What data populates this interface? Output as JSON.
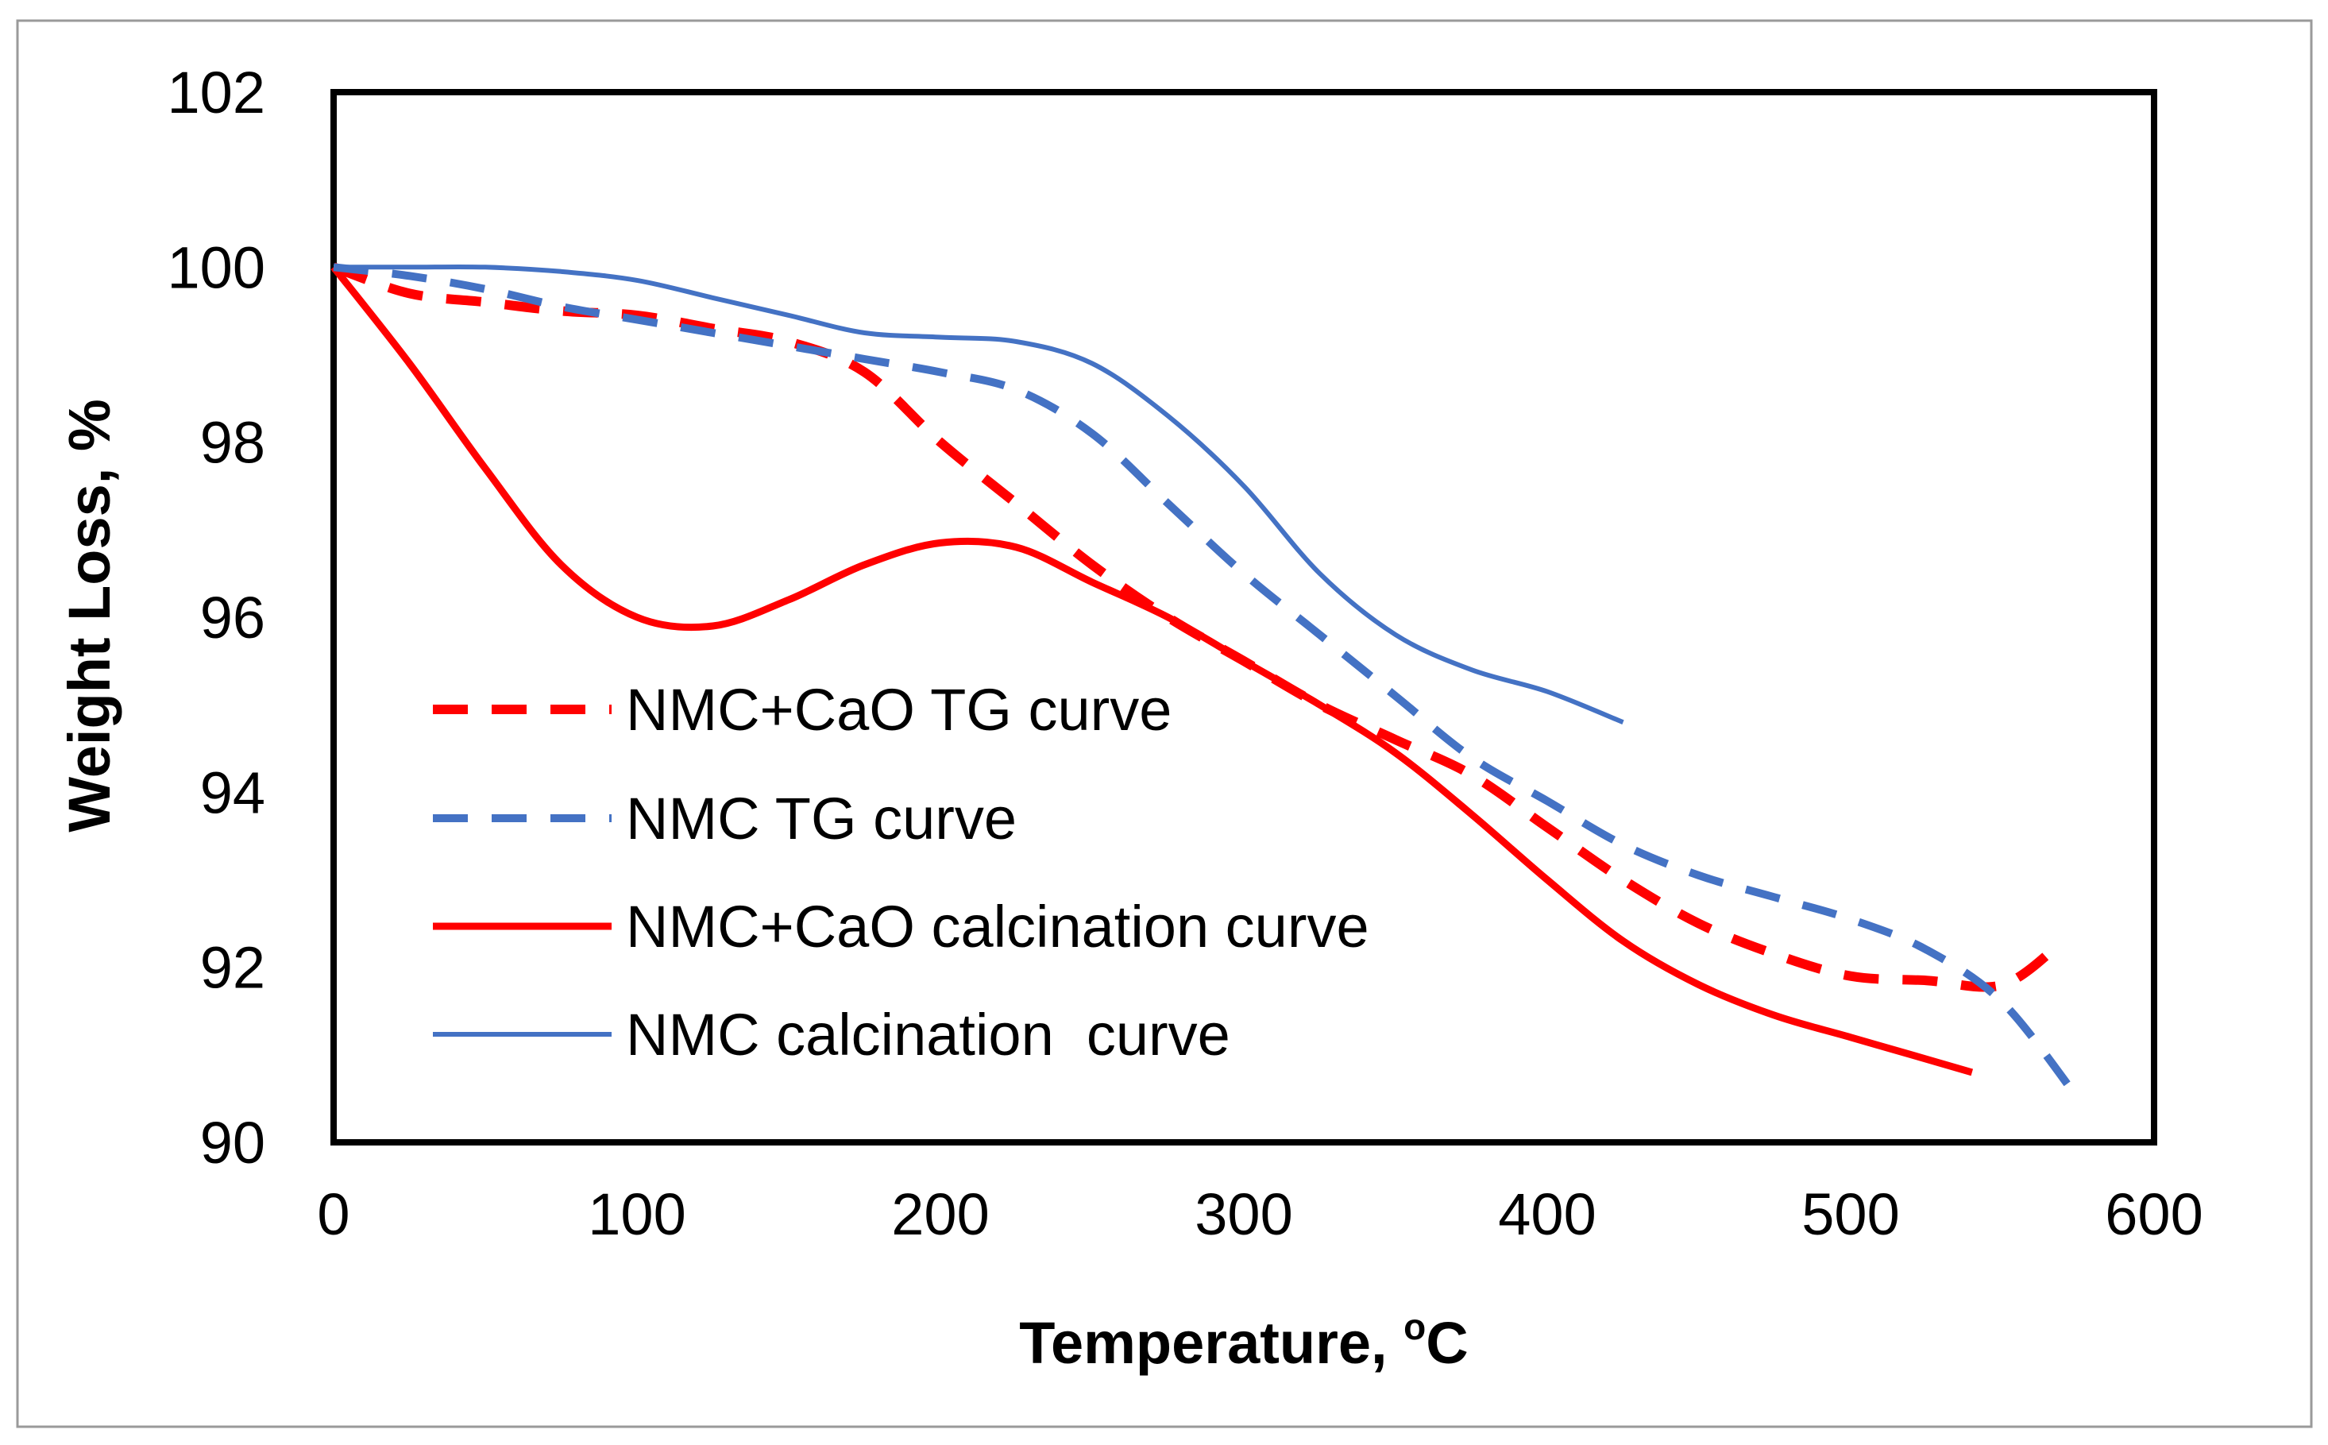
{
  "chart_data": {
    "type": "line",
    "title": "",
    "xlabel": "Temperature, ",
    "xlabel_sup": "o",
    "xlabel_unit": "C",
    "ylabel": "Weight Loss, %",
    "xlim": [
      0,
      600
    ],
    "ylim": [
      90,
      102
    ],
    "xticks": [
      "0",
      "100",
      "200",
      "300",
      "400",
      "500",
      "600"
    ],
    "yticks": [
      "90",
      "92",
      "94",
      "96",
      "98",
      "100",
      "102"
    ],
    "grid": false,
    "legend_position": "bottom-left inside plot",
    "series": [
      {
        "name": "NMC+CaO TG curve",
        "color": "#ff0000",
        "style": "dashed",
        "x": [
          0,
          25,
          50,
          75,
          100,
          125,
          150,
          175,
          200,
          225,
          250,
          275,
          300,
          325,
          350,
          375,
          400,
          425,
          450,
          475,
          500,
          525,
          550,
          570
        ],
        "y": [
          100.0,
          99.7,
          99.6,
          99.5,
          99.45,
          99.3,
          99.15,
          98.8,
          98.0,
          97.3,
          96.6,
          96.0,
          95.5,
          95.0,
          94.6,
          94.2,
          93.6,
          93.0,
          92.5,
          92.15,
          91.9,
          91.85,
          91.8,
          92.3
        ]
      },
      {
        "name": "NMC TG curve",
        "color": "#4472c4",
        "style": "dashed",
        "x": [
          0,
          25,
          50,
          75,
          100,
          125,
          150,
          175,
          200,
          225,
          250,
          275,
          300,
          325,
          350,
          375,
          400,
          425,
          450,
          475,
          500,
          525,
          550,
          575
        ],
        "y": [
          100.0,
          99.9,
          99.75,
          99.55,
          99.4,
          99.25,
          99.1,
          98.95,
          98.8,
          98.6,
          98.1,
          97.3,
          96.5,
          95.8,
          95.1,
          94.4,
          93.9,
          93.4,
          93.05,
          92.8,
          92.55,
          92.2,
          91.6,
          90.5
        ]
      },
      {
        "name": "NMC+CaO calcination curve",
        "color": "#ff0000",
        "style": "solid",
        "x": [
          0,
          25,
          50,
          75,
          100,
          125,
          150,
          175,
          200,
          225,
          250,
          275,
          300,
          325,
          350,
          375,
          400,
          425,
          450,
          475,
          500,
          525,
          540
        ],
        "y": [
          100.0,
          98.9,
          97.7,
          96.6,
          96.0,
          95.9,
          96.2,
          96.6,
          96.85,
          96.8,
          96.4,
          96.0,
          95.5,
          95.0,
          94.45,
          93.75,
          93.0,
          92.3,
          91.8,
          91.45,
          91.2,
          90.95,
          90.8
        ]
      },
      {
        "name": "NMC calcination  curve",
        "color": "#4472c4",
        "style": "solid",
        "x": [
          0,
          25,
          50,
          75,
          100,
          125,
          150,
          175,
          200,
          225,
          250,
          275,
          300,
          325,
          350,
          375,
          400,
          425
        ],
        "y": [
          100.0,
          100.0,
          100.0,
          99.95,
          99.85,
          99.65,
          99.45,
          99.25,
          99.2,
          99.15,
          98.9,
          98.3,
          97.5,
          96.5,
          95.8,
          95.4,
          95.15,
          94.8
        ]
      }
    ]
  }
}
